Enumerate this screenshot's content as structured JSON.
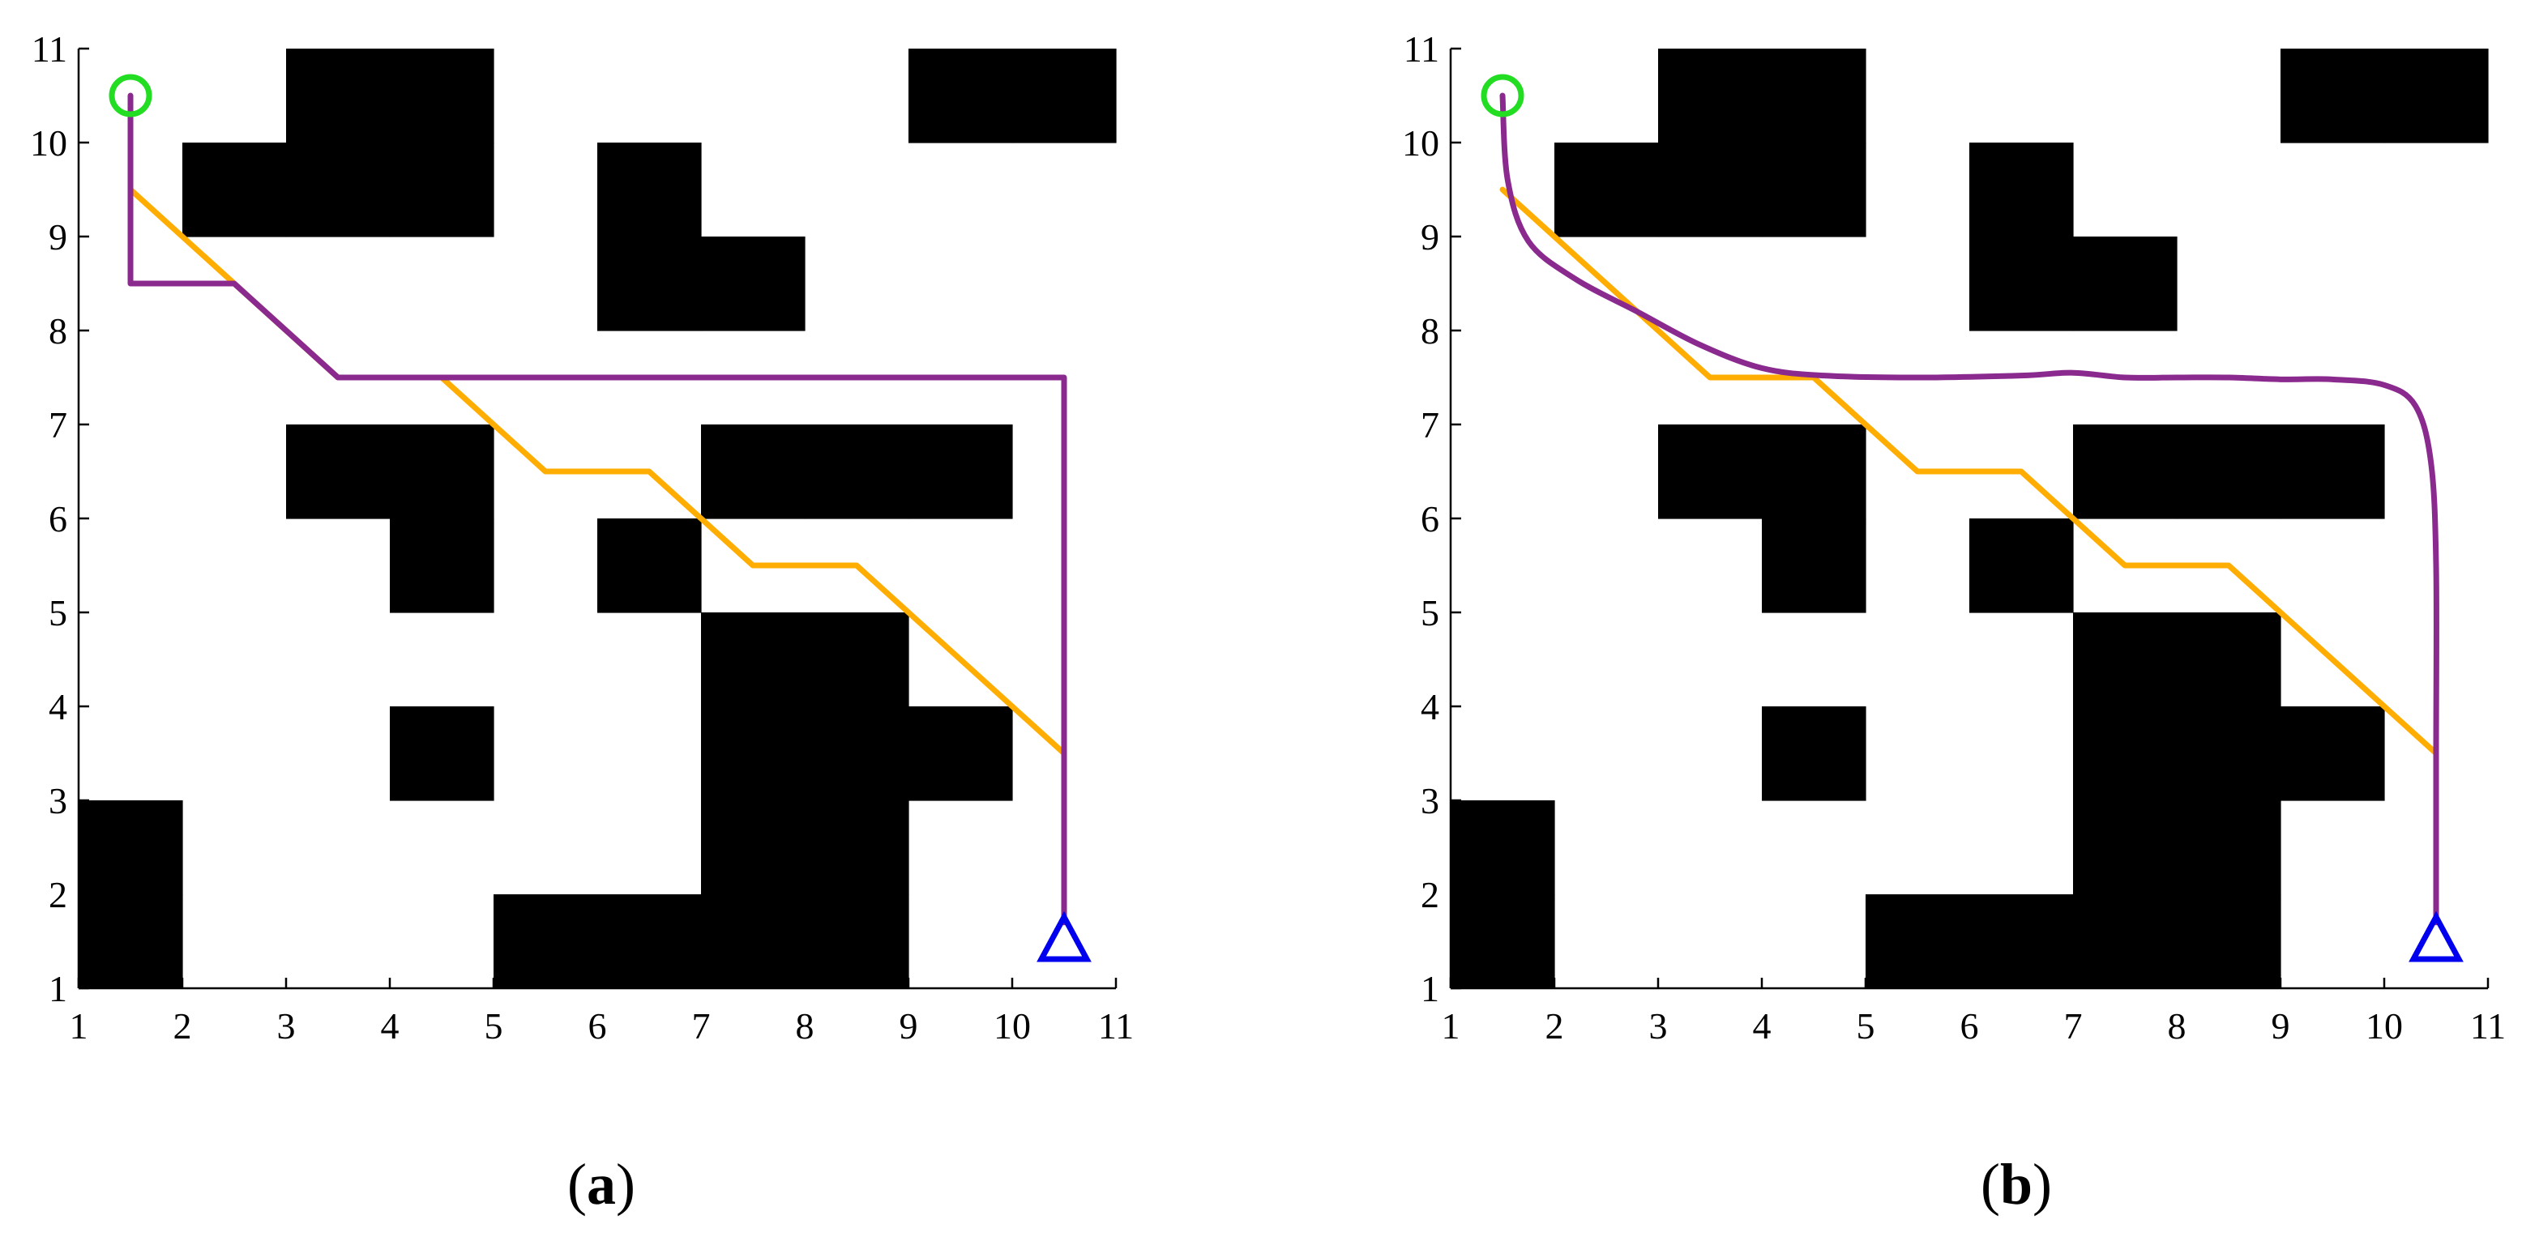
{
  "figure": {
    "panels": [
      {
        "label_open": "(",
        "label_letter": "a",
        "label_close": ")"
      },
      {
        "label_open": "(",
        "label_letter": "b",
        "label_close": ")"
      }
    ]
  },
  "chart_data": [
    {
      "type": "line",
      "panel": "a",
      "xlim": [
        1,
        11
      ],
      "ylim": [
        1,
        11
      ],
      "xticks": [
        1,
        2,
        3,
        4,
        5,
        6,
        7,
        8,
        9,
        10,
        11
      ],
      "yticks": [
        1,
        2,
        3,
        4,
        5,
        6,
        7,
        8,
        9,
        10,
        11
      ],
      "grid": false,
      "obstacle_color": "#000000",
      "obstacles": [
        [
          3,
          10
        ],
        [
          4,
          10
        ],
        [
          2,
          9
        ],
        [
          3,
          9
        ],
        [
          4,
          9
        ],
        [
          9,
          10
        ],
        [
          10,
          10
        ],
        [
          6,
          9
        ],
        [
          6,
          8
        ],
        [
          7,
          8
        ],
        [
          3,
          6
        ],
        [
          4,
          6
        ],
        [
          4,
          5
        ],
        [
          7,
          6
        ],
        [
          8,
          6
        ],
        [
          9,
          6
        ],
        [
          6,
          5
        ],
        [
          4,
          3
        ],
        [
          7,
          4
        ],
        [
          8,
          4
        ],
        [
          7,
          3
        ],
        [
          8,
          3
        ],
        [
          9,
          3
        ],
        [
          7,
          2
        ],
        [
          8,
          2
        ],
        [
          5,
          1
        ],
        [
          6,
          1
        ],
        [
          7,
          1
        ],
        [
          8,
          1
        ],
        [
          1,
          2
        ],
        [
          1,
          1
        ]
      ],
      "start": {
        "x": 1.5,
        "y": 10.5,
        "marker": "circle",
        "color": "#22dd22"
      },
      "goal": {
        "x": 10.5,
        "y": 1.5,
        "marker": "triangle",
        "color": "#0000ee"
      },
      "series": [
        {
          "color": "#ffad00",
          "x": [
            1.5,
            3.5,
            4.5,
            5.5,
            6.5,
            7.5,
            8.5,
            10.5
          ],
          "y": [
            9.5,
            7.5,
            7.5,
            6.5,
            6.5,
            5.5,
            5.5,
            3.5
          ]
        },
        {
          "color": "#8b2a8e",
          "x": [
            1.5,
            1.5,
            2.5,
            3.5,
            10.5,
            10.5
          ],
          "y": [
            10.5,
            8.5,
            8.5,
            7.5,
            7.5,
            1.7
          ]
        }
      ]
    },
    {
      "type": "line",
      "panel": "b",
      "xlim": [
        1,
        11
      ],
      "ylim": [
        1,
        11
      ],
      "xticks": [
        1,
        2,
        3,
        4,
        5,
        6,
        7,
        8,
        9,
        10,
        11
      ],
      "yticks": [
        1,
        2,
        3,
        4,
        5,
        6,
        7,
        8,
        9,
        10,
        11
      ],
      "grid": false,
      "obstacle_color": "#000000",
      "obstacles": [
        [
          3,
          10
        ],
        [
          4,
          10
        ],
        [
          2,
          9
        ],
        [
          3,
          9
        ],
        [
          4,
          9
        ],
        [
          9,
          10
        ],
        [
          10,
          10
        ],
        [
          6,
          9
        ],
        [
          6,
          8
        ],
        [
          7,
          8
        ],
        [
          3,
          6
        ],
        [
          4,
          6
        ],
        [
          4,
          5
        ],
        [
          7,
          6
        ],
        [
          8,
          6
        ],
        [
          9,
          6
        ],
        [
          6,
          5
        ],
        [
          4,
          3
        ],
        [
          7,
          4
        ],
        [
          8,
          4
        ],
        [
          7,
          3
        ],
        [
          8,
          3
        ],
        [
          9,
          3
        ],
        [
          7,
          2
        ],
        [
          8,
          2
        ],
        [
          5,
          1
        ],
        [
          6,
          1
        ],
        [
          7,
          1
        ],
        [
          8,
          1
        ],
        [
          1,
          2
        ],
        [
          1,
          1
        ]
      ],
      "start": {
        "x": 1.5,
        "y": 10.5,
        "marker": "circle",
        "color": "#22dd22"
      },
      "goal": {
        "x": 10.5,
        "y": 1.5,
        "marker": "triangle",
        "color": "#0000ee"
      },
      "series": [
        {
          "color": "#ffad00",
          "x": [
            1.5,
            3.5,
            4.5,
            5.5,
            6.5,
            7.5,
            8.5,
            10.5
          ],
          "y": [
            9.5,
            7.5,
            7.5,
            6.5,
            6.5,
            5.5,
            5.5,
            3.5
          ]
        },
        {
          "color": "#8b2a8e",
          "smooth": true,
          "x": [
            1.5,
            1.55,
            1.75,
            2.2,
            2.8,
            3.4,
            4.0,
            4.6,
            5.5,
            6.5,
            7.0,
            7.5,
            8.0,
            8.5,
            9.0,
            9.5,
            10.0,
            10.3,
            10.45,
            10.5,
            10.5,
            10.5
          ],
          "y": [
            10.5,
            9.6,
            8.95,
            8.55,
            8.2,
            7.85,
            7.6,
            7.52,
            7.5,
            7.52,
            7.55,
            7.5,
            7.5,
            7.5,
            7.48,
            7.48,
            7.42,
            7.2,
            6.6,
            5.5,
            3.5,
            1.7
          ]
        }
      ]
    }
  ]
}
